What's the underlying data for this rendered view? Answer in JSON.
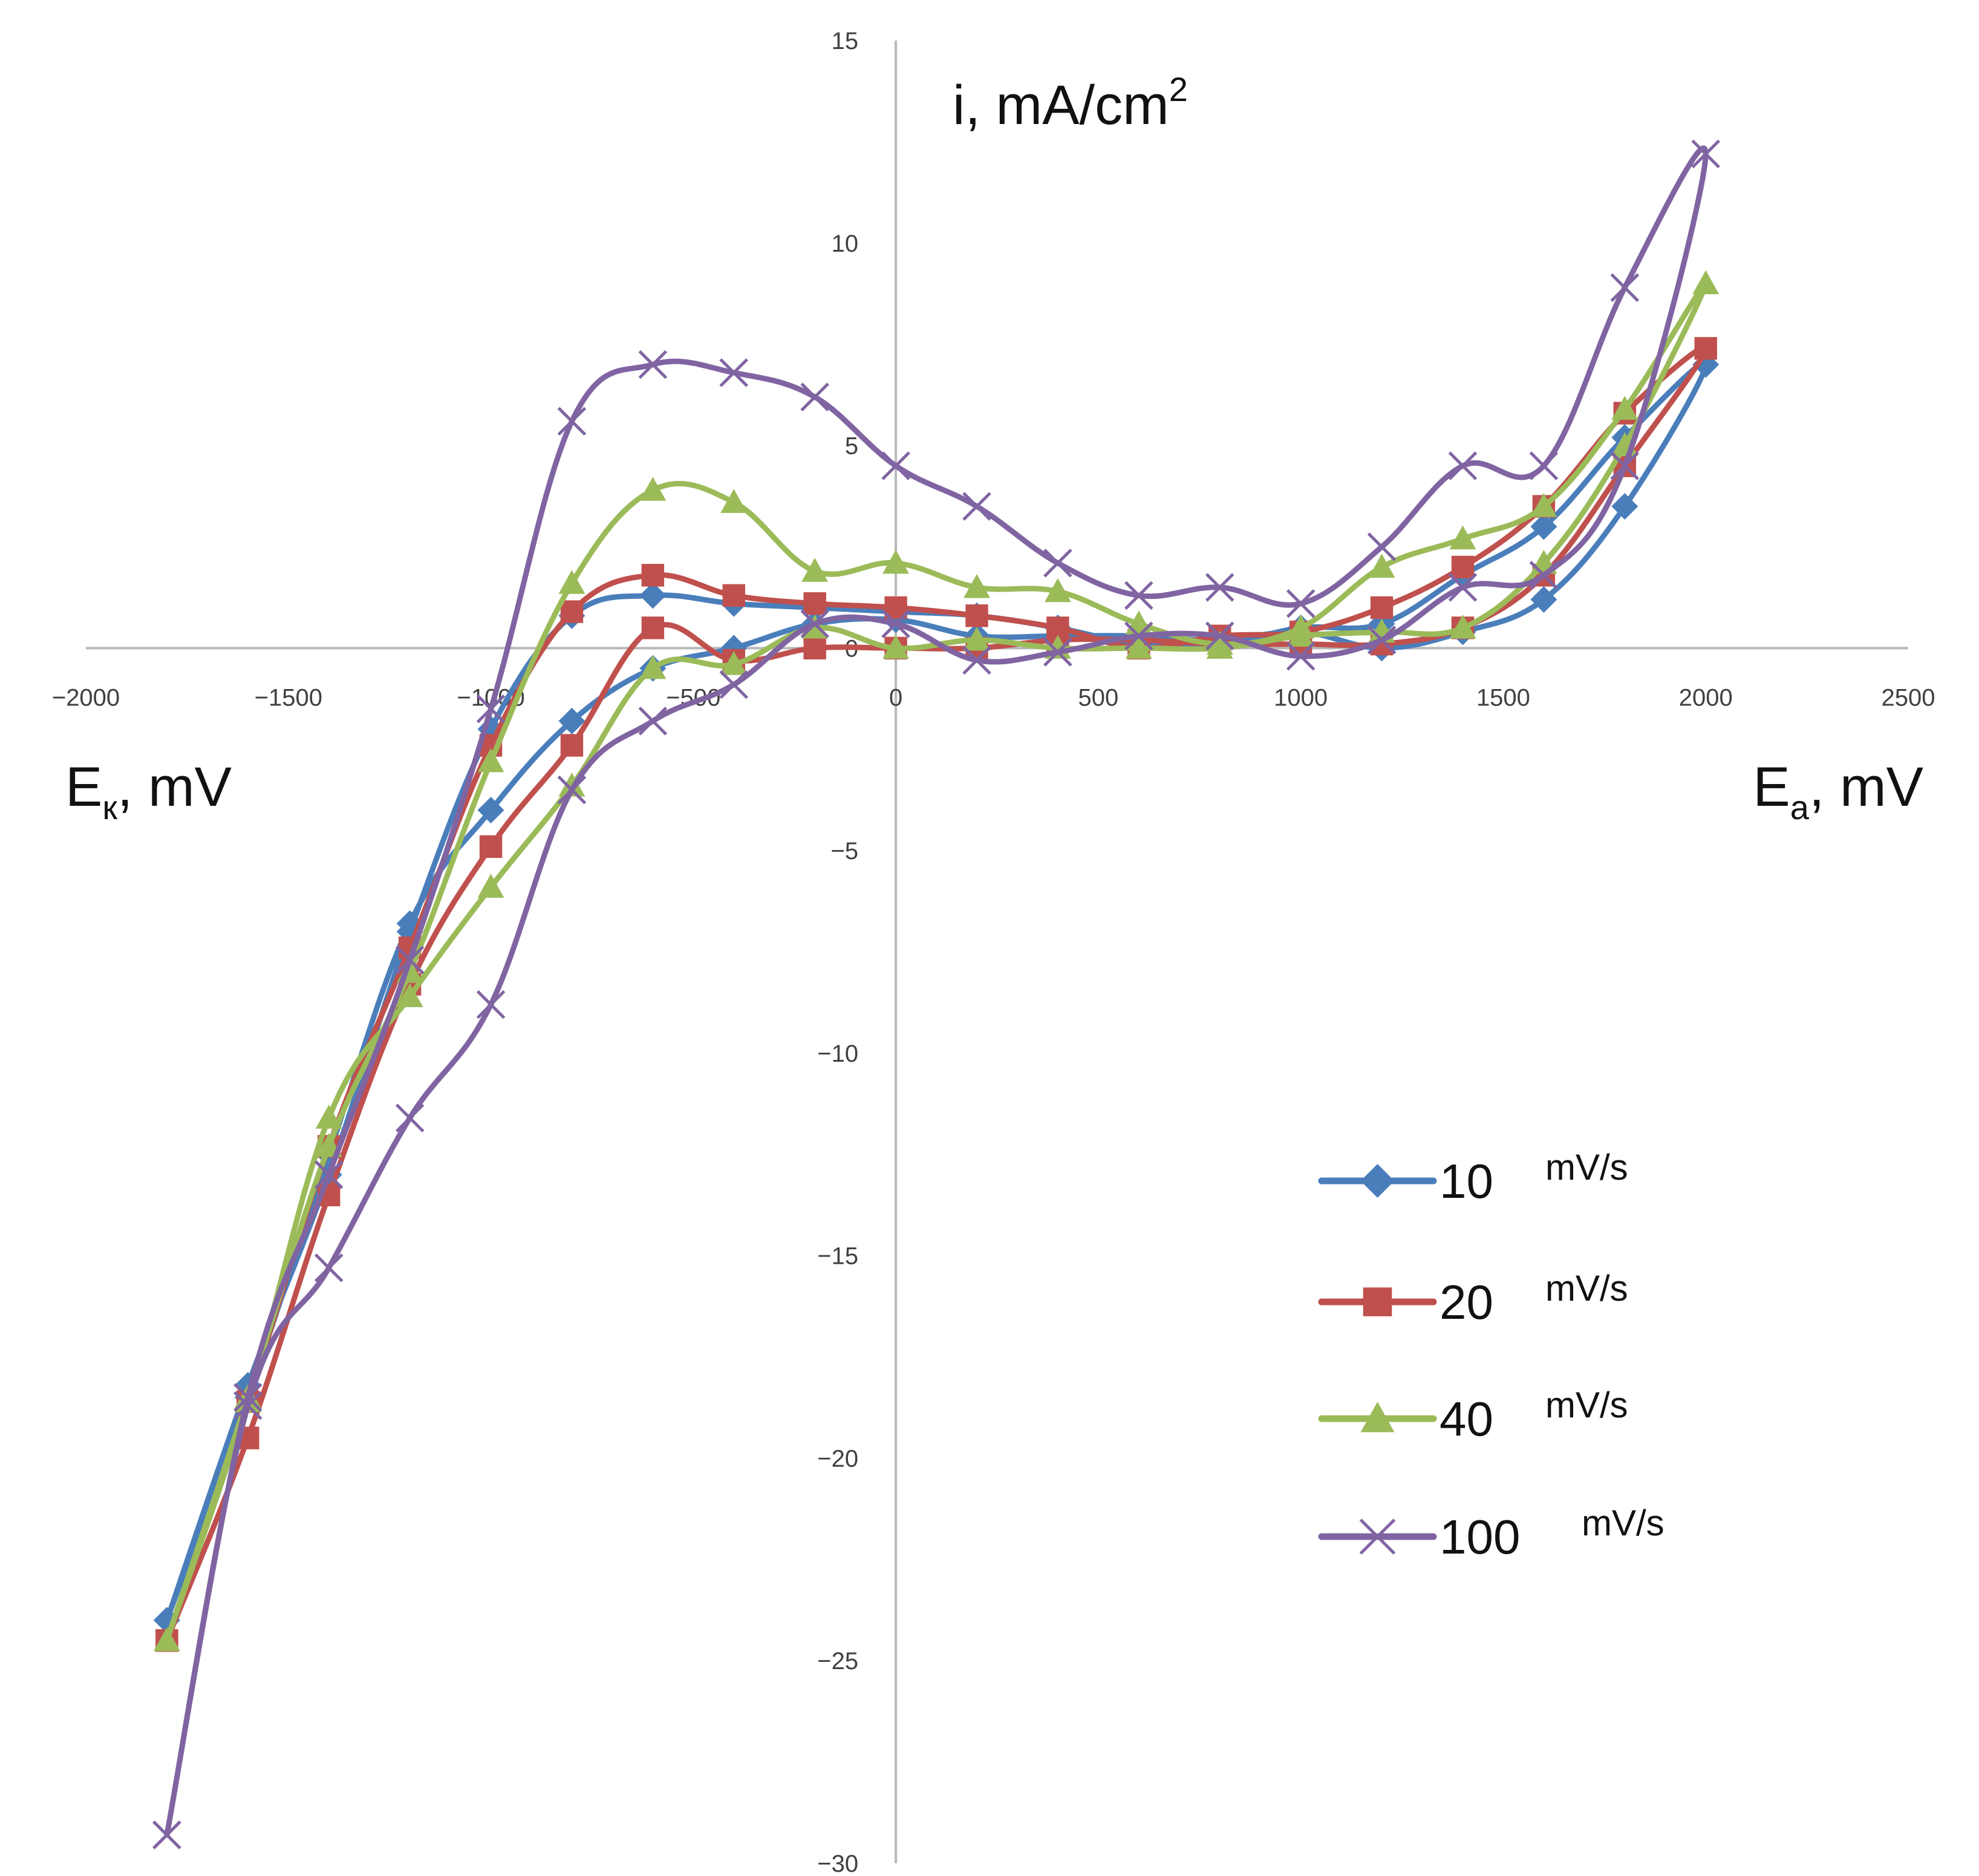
{
  "chart_data": {
    "type": "line",
    "title": "",
    "ylabel": "i, mA/cm",
    "ylabel_sup": "2",
    "xlabel_left": {
      "main": "E",
      "sub": "к",
      "rest": ", mV"
    },
    "xlabel_right": {
      "main": "E",
      "sub": "a",
      "rest": ", mV"
    },
    "xlim": [
      -2000,
      2500
    ],
    "ylim": [
      -30,
      15
    ],
    "x_ticks": [
      -2000,
      -1500,
      -1000,
      -500,
      0,
      500,
      1000,
      1500,
      2000,
      2500
    ],
    "x_tick_labels": [
      "−2000",
      "−1500",
      "−1000",
      "−500",
      "0",
      "500",
      "1000",
      "1500",
      "2000",
      "2500"
    ],
    "y_ticks": [
      15,
      10,
      5,
      0,
      -5,
      -10,
      -15,
      -20,
      -25,
      -30
    ],
    "y_tick_labels": [
      "15",
      "10",
      "5",
      "0",
      "−5",
      "−10",
      "−15",
      "−20",
      "−25",
      "−30"
    ],
    "legend_position": "lower-right",
    "series": [
      {
        "name": "10",
        "unit": "mV/s",
        "color": "#4a7ebb",
        "marker": "diamond",
        "points": [
          [
            -1800,
            -24
          ],
          [
            -1600,
            -18.5
          ],
          [
            -1400,
            -12.5
          ],
          [
            -1200,
            -6.8
          ],
          [
            -1000,
            -4
          ],
          [
            -800,
            -1.8
          ],
          [
            -600,
            -0.5
          ],
          [
            -400,
            0
          ],
          [
            -200,
            0.6
          ],
          [
            0,
            0.7
          ],
          [
            200,
            0.3
          ],
          [
            400,
            0.3
          ],
          [
            600,
            0.3
          ],
          [
            800,
            0.2
          ],
          [
            1000,
            0.4
          ],
          [
            1200,
            0
          ],
          [
            1400,
            0.4
          ],
          [
            1600,
            1.2
          ],
          [
            1800,
            3.5
          ],
          [
            2000,
            7
          ],
          [
            1800,
            5.2
          ],
          [
            1600,
            3
          ],
          [
            1400,
            1.8
          ],
          [
            1200,
            0.6
          ],
          [
            1000,
            0.5
          ],
          [
            800,
            0.1
          ],
          [
            600,
            0.1
          ],
          [
            400,
            0.5
          ],
          [
            200,
            0.8
          ],
          [
            0,
            0.9
          ],
          [
            -200,
            1
          ],
          [
            -400,
            1.1
          ],
          [
            -600,
            1.3
          ],
          [
            -800,
            0.8
          ],
          [
            -1000,
            -2
          ],
          [
            -1200,
            -7
          ],
          [
            -1400,
            -13
          ],
          [
            -1600,
            -18.2
          ],
          [
            -1800,
            -24
          ]
        ]
      },
      {
        "name": "20",
        "unit": "mV/s",
        "color": "#c0504d",
        "marker": "square",
        "points": [
          [
            -1800,
            -24.5
          ],
          [
            -1600,
            -19.5
          ],
          [
            -1400,
            -13.5
          ],
          [
            -1200,
            -8.3
          ],
          [
            -1000,
            -4.9
          ],
          [
            -800,
            -2.4
          ],
          [
            -600,
            0.5
          ],
          [
            -400,
            -0.3
          ],
          [
            -200,
            0
          ],
          [
            0,
            0
          ],
          [
            200,
            0
          ],
          [
            400,
            0.2
          ],
          [
            600,
            0.2
          ],
          [
            800,
            0.1
          ],
          [
            1000,
            0.1
          ],
          [
            1200,
            0.1
          ],
          [
            1400,
            0.5
          ],
          [
            1600,
            1.8
          ],
          [
            1800,
            4.5
          ],
          [
            2000,
            7.4
          ],
          [
            1800,
            5.8
          ],
          [
            1600,
            3.5
          ],
          [
            1400,
            2
          ],
          [
            1200,
            1
          ],
          [
            1000,
            0.4
          ],
          [
            800,
            0.3
          ],
          [
            600,
            0
          ],
          [
            400,
            0.5
          ],
          [
            200,
            0.8
          ],
          [
            0,
            1
          ],
          [
            -200,
            1.1
          ],
          [
            -400,
            1.3
          ],
          [
            -600,
            1.8
          ],
          [
            -800,
            0.9
          ],
          [
            -1000,
            -2.4
          ],
          [
            -1200,
            -7.4
          ],
          [
            -1400,
            -12.3
          ],
          [
            -1600,
            -18.6
          ],
          [
            -1800,
            -24.5
          ]
        ]
      },
      {
        "name": "40",
        "unit": "mV/s",
        "color": "#9bbb59",
        "marker": "triangle",
        "points": [
          [
            -1800,
            -24.5
          ],
          [
            -1600,
            -18.6
          ],
          [
            -1400,
            -11.6
          ],
          [
            -1200,
            -8.6
          ],
          [
            -1000,
            -5.9
          ],
          [
            -800,
            -3.4
          ],
          [
            -600,
            -0.5
          ],
          [
            -400,
            -0.4
          ],
          [
            -200,
            0.5
          ],
          [
            0,
            0
          ],
          [
            200,
            0.2
          ],
          [
            400,
            0
          ],
          [
            600,
            0
          ],
          [
            800,
            0
          ],
          [
            1000,
            0.3
          ],
          [
            1200,
            0.4
          ],
          [
            1400,
            0.5
          ],
          [
            1600,
            2.1
          ],
          [
            1800,
            5
          ],
          [
            2000,
            9
          ],
          [
            1800,
            5.9
          ],
          [
            1600,
            3.5
          ],
          [
            1400,
            2.7
          ],
          [
            1200,
            2
          ],
          [
            1000,
            0.5
          ],
          [
            800,
            0.1
          ],
          [
            600,
            0.6
          ],
          [
            400,
            1.4
          ],
          [
            200,
            1.5
          ],
          [
            0,
            2.1
          ],
          [
            -200,
            1.9
          ],
          [
            -400,
            3.6
          ],
          [
            -600,
            3.9
          ],
          [
            -800,
            1.6
          ],
          [
            -1000,
            -2.8
          ],
          [
            -1200,
            -8
          ],
          [
            -1400,
            -12.3
          ],
          [
            -1600,
            -18.5
          ],
          [
            -1800,
            -24.5
          ]
        ]
      },
      {
        "name": "100",
        "unit": "mV/s",
        "color": "#8064a2",
        "marker": "x",
        "points": [
          [
            -1800,
            -29.3
          ],
          [
            -1600,
            -18.7
          ],
          [
            -1400,
            -15.3
          ],
          [
            -1200,
            -11.6
          ],
          [
            -1000,
            -8.8
          ],
          [
            -800,
            -3.5
          ],
          [
            -600,
            -1.8
          ],
          [
            -400,
            -0.9
          ],
          [
            -200,
            0.6
          ],
          [
            0,
            0.6
          ],
          [
            200,
            -0.3
          ],
          [
            400,
            -0.1
          ],
          [
            600,
            0.3
          ],
          [
            800,
            0.3
          ],
          [
            1000,
            -0.2
          ],
          [
            1200,
            0.2
          ],
          [
            1400,
            1.5
          ],
          [
            1600,
            1.8
          ],
          [
            1800,
            4.5
          ],
          [
            2000,
            12.2
          ],
          [
            1800,
            8.9
          ],
          [
            1600,
            4.5
          ],
          [
            1400,
            4.5
          ],
          [
            1200,
            2.5
          ],
          [
            1000,
            1.1
          ],
          [
            800,
            1.5
          ],
          [
            600,
            1.3
          ],
          [
            400,
            2.1
          ],
          [
            200,
            3.5
          ],
          [
            0,
            4.5
          ],
          [
            -200,
            6.2
          ],
          [
            -400,
            6.8
          ],
          [
            -600,
            7
          ],
          [
            -800,
            5.6
          ],
          [
            -1000,
            -1.5
          ],
          [
            -1200,
            -7.7
          ],
          [
            -1400,
            -13
          ],
          [
            -1600,
            -18.5
          ],
          [
            -1800,
            -29.3
          ]
        ]
      }
    ]
  }
}
